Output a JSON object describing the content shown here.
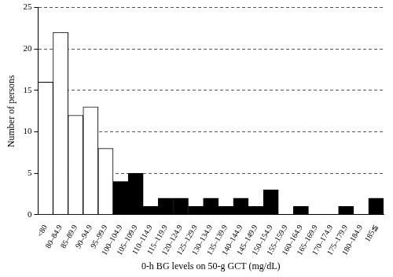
{
  "chart_data": {
    "type": "bar",
    "x_label": "0-h BG levels on 50-g GCT (mg/dL)",
    "y_label": "Number of persons",
    "categories": [
      "<80",
      "80–84.9",
      "85–89.9",
      "90–94.9",
      "95–99.9",
      "100–104.9",
      "105–109.9",
      "110–114.9",
      "115–119.9",
      "120–124.9",
      "125–129.9",
      "130–134.9",
      "135–139.9",
      "140–144.9",
      "145–149.9",
      "150–154.9",
      "155–159.9",
      "160–164.9",
      "165–169.9",
      "170–174.9",
      "175–179.9",
      "180–184.9",
      "185≦"
    ],
    "values": [
      16,
      22,
      12,
      13,
      8,
      4,
      5,
      1,
      2,
      2,
      1,
      2,
      1,
      2,
      1,
      3,
      0,
      1,
      0,
      0,
      1,
      0,
      2
    ],
    "colors": [
      "#ffffff",
      "#ffffff",
      "#ffffff",
      "#ffffff",
      "#ffffff",
      "#000000",
      "#000000",
      "#000000",
      "#000000",
      "#000000",
      "#000000",
      "#000000",
      "#000000",
      "#000000",
      "#000000",
      "#000000",
      "#000000",
      "#000000",
      "#000000",
      "#000000",
      "#000000",
      "#000000",
      "#000000"
    ],
    "ylim": [
      0,
      25
    ],
    "yticks": [
      0,
      5,
      10,
      15,
      20,
      25
    ],
    "grid": true
  }
}
